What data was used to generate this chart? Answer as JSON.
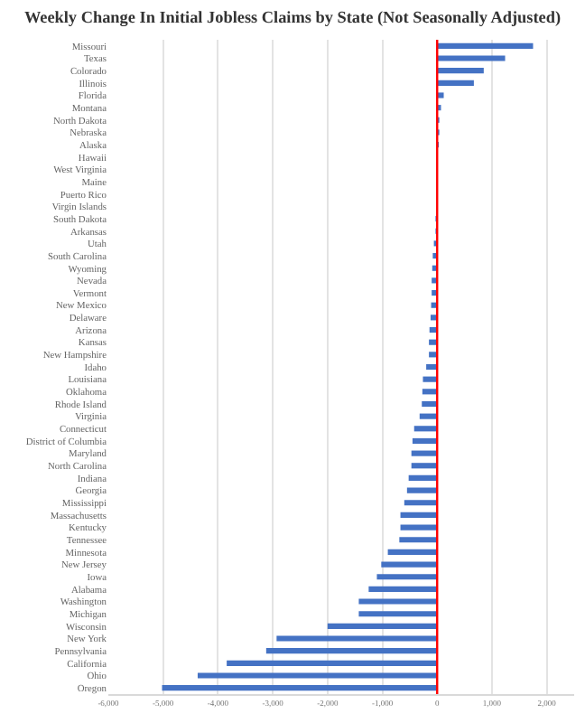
{
  "chart_data": {
    "type": "bar",
    "orientation": "horizontal",
    "title": "Weekly Change In Initial Jobless Claims by State (Not Seasonally Adjusted)",
    "categories": [
      "Missouri",
      "Texas",
      "Colorado",
      "Illinois",
      "Florida",
      "Montana",
      "North Dakota",
      "Nebraska",
      "Alaska",
      "Hawaii",
      "West Virginia",
      "Maine",
      "Puerto Rico",
      "Virgin Islands",
      "South Dakota",
      "Arkansas",
      "Utah",
      "South Carolina",
      "Wyoming",
      "Nevada",
      "Vermont",
      "New Mexico",
      "Delaware",
      "Arizona",
      "Kansas",
      "New Hampshire",
      "Idaho",
      "Louisiana",
      "Oklahoma",
      "Rhode Island",
      "Virginia",
      "Connecticut",
      "District of Columbia",
      "Maryland",
      "North Carolina",
      "Indiana",
      "Georgia",
      "Mississippi",
      "Massachusetts",
      "Kentucky",
      "Tennessee",
      "Minnesota",
      "New Jersey",
      "Iowa",
      "Alabama",
      "Washington",
      "Michigan",
      "Wisconsin",
      "New York",
      "Pennsylvania",
      "California",
      "Ohio",
      "Oregon"
    ],
    "values": [
      1750,
      1240,
      850,
      670,
      120,
      70,
      40,
      40,
      30,
      null,
      0,
      0,
      0,
      null,
      -30,
      -30,
      -60,
      -80,
      -90,
      -100,
      -100,
      -110,
      -120,
      -140,
      -150,
      -150,
      -200,
      -260,
      -270,
      -280,
      -320,
      -420,
      -450,
      -470,
      -470,
      -520,
      -550,
      -600,
      -670,
      -670,
      -690,
      -900,
      -1020,
      -1100,
      -1250,
      -1430,
      -1430,
      -2000,
      -2930,
      -3120,
      -3840,
      -4370,
      -5020
    ],
    "color": "#4472c4",
    "xlim": [
      -6000,
      2500
    ],
    "xticks": [
      {
        "value": -6000,
        "label": "-6,000"
      },
      {
        "value": -5000,
        "label": "-5,000"
      },
      {
        "value": -4000,
        "label": "-4,000"
      },
      {
        "value": -3000,
        "label": "-3,000"
      },
      {
        "value": -2000,
        "label": "-2,000"
      },
      {
        "value": -1000,
        "label": "-1,000"
      },
      0,
      {
        "value": 1000,
        "label": "1,000"
      },
      {
        "value": 2000,
        "label": "2,000"
      }
    ],
    "grid": "x",
    "ref_lines": [
      {
        "axis": "x",
        "value": 0,
        "color": "#ff0000"
      }
    ]
  }
}
